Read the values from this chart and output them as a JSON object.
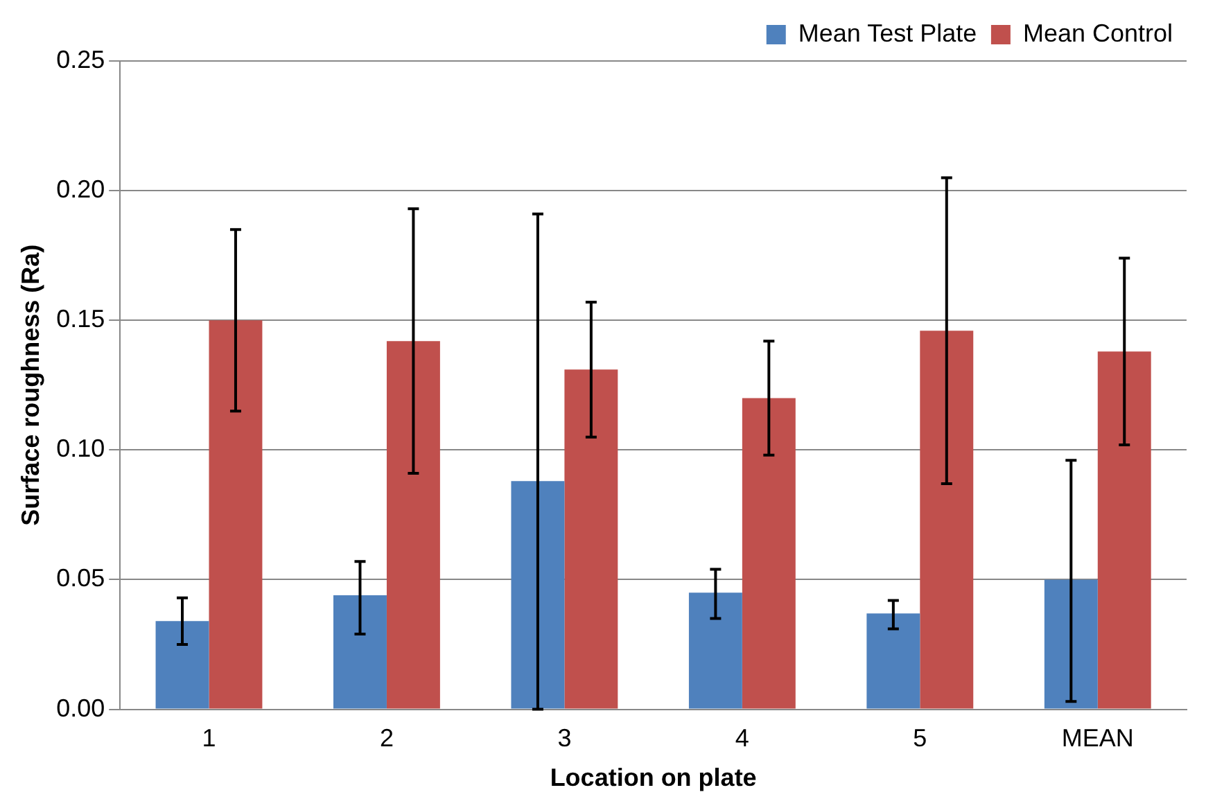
{
  "chart_data": {
    "type": "bar",
    "xlabel": "Location on plate",
    "ylabel": "Surface roughness (Ra)",
    "categories": [
      "1",
      "2",
      "3",
      "4",
      "5",
      "MEAN"
    ],
    "series": [
      {
        "name": "Mean Test Plate",
        "color": "#4f81bd",
        "values": [
          0.034,
          0.044,
          0.088,
          0.045,
          0.037,
          0.05
        ],
        "errors": [
          [
            0.025,
            0.043
          ],
          [
            0.029,
            0.057
          ],
          [
            0.0,
            0.191
          ],
          [
            0.035,
            0.054
          ],
          [
            0.031,
            0.042
          ],
          [
            0.003,
            0.096
          ]
        ]
      },
      {
        "name": "Mean Control",
        "color": "#c0504d",
        "values": [
          0.15,
          0.142,
          0.131,
          0.12,
          0.146,
          0.138
        ],
        "errors": [
          [
            0.115,
            0.185
          ],
          [
            0.091,
            0.193
          ],
          [
            0.105,
            0.157
          ],
          [
            0.098,
            0.142
          ],
          [
            0.087,
            0.205
          ],
          [
            0.102,
            0.174
          ]
        ]
      }
    ],
    "ylim": [
      0,
      0.25
    ],
    "yticks": [
      {
        "value": 0,
        "label": "0.00"
      },
      {
        "value": 0.05,
        "label": "0.05"
      },
      {
        "value": 0.1,
        "label": "0.10"
      },
      {
        "value": 0.15,
        "label": "0.15"
      },
      {
        "value": 0.2,
        "label": "0.20"
      },
      {
        "value": 0.25,
        "label": "0.25"
      }
    ],
    "grid": "y",
    "legend": "top right"
  }
}
